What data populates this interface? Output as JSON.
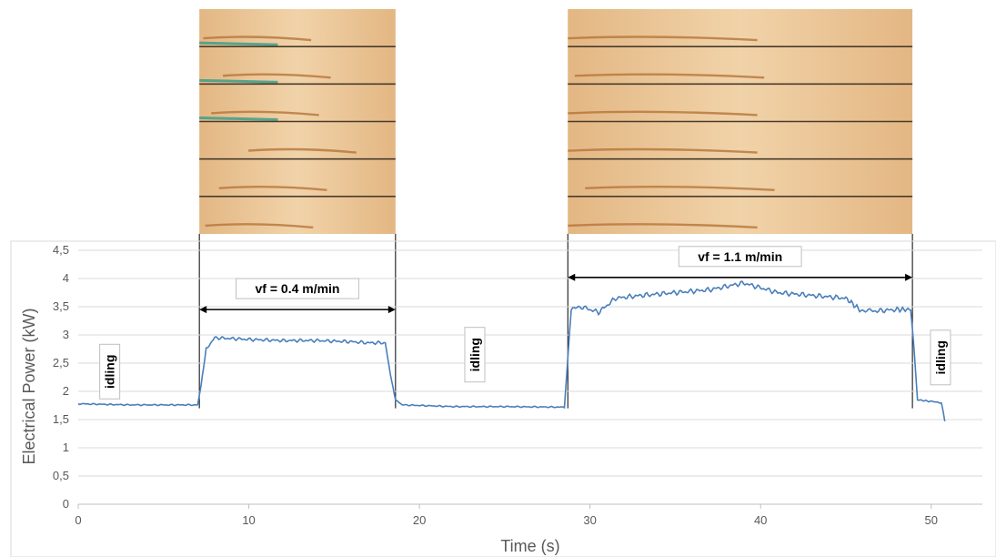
{
  "colors": {
    "series": "#4a7ebb",
    "grid": "#d9d9d9",
    "text": "#595959",
    "wood_light": "#f1d3a9",
    "wood_dark": "#e3b783",
    "wood_stain": "#b5743a",
    "wood_green": "#3d9d8b"
  },
  "chart_data": {
    "type": "line",
    "xlabel": "Time (s)",
    "ylabel": "Electrical Power (kW)",
    "xlim": [
      0,
      53
    ],
    "ylim": [
      0,
      4.5
    ],
    "x_ticks": [
      "0",
      "10",
      "20",
      "30",
      "40",
      "50"
    ],
    "y_ticks": [
      "0",
      "0,5",
      "1",
      "1,5",
      "2",
      "2,5",
      "3",
      "3,5",
      "4",
      "4,5"
    ],
    "grid": "horizontal",
    "series": [
      {
        "x": [
          0,
          3,
          6,
          7.0,
          7.2,
          7.5,
          8,
          10,
          12,
          14,
          16,
          17,
          18.0,
          18.3,
          18.6,
          19,
          22,
          25,
          28.5,
          28.7,
          28.9,
          29.5,
          30.5,
          31.5,
          33,
          35,
          37,
          39,
          41,
          43,
          45,
          45.8,
          46.5,
          48,
          48.8,
          49.0,
          49.2,
          50,
          50.6,
          50.7,
          50.8
        ],
        "y": [
          1.78,
          1.76,
          1.76,
          1.76,
          2.1,
          2.75,
          2.95,
          2.92,
          2.9,
          2.9,
          2.88,
          2.86,
          2.86,
          2.3,
          1.85,
          1.76,
          1.73,
          1.73,
          1.72,
          2.6,
          3.45,
          3.5,
          3.4,
          3.65,
          3.7,
          3.75,
          3.8,
          3.92,
          3.75,
          3.7,
          3.65,
          3.45,
          3.42,
          3.45,
          3.45,
          2.7,
          1.85,
          1.82,
          1.8,
          1.65,
          1.47
        ]
      }
    ],
    "annotations": [
      {
        "text": "vf = 0.4 m/min",
        "x_start": 7.1,
        "x_end": 18.6,
        "y": 3.45
      },
      {
        "text": "vf = 1.1 m/min",
        "x_start": 28.7,
        "x_end": 48.9,
        "y": 4.02
      },
      {
        "text": "idling",
        "x": 1.9,
        "y": 2.35
      },
      {
        "text": "idling",
        "x": 23.3,
        "y": 2.65
      },
      {
        "text": "idling",
        "x": 50.6,
        "y": 2.6
      }
    ]
  },
  "photos": [
    {
      "name": "wood-sample-photo-0-4",
      "boards": 6,
      "x_start": 7.1,
      "x_end": 18.6,
      "stripe_x": [
        0.02,
        0.12,
        0.06,
        0.25,
        0.1,
        0.03
      ]
    },
    {
      "name": "wood-sample-photo-1-1",
      "boards": 6,
      "x_start": 28.7,
      "x_end": 48.9,
      "stripe_x": [
        0.0,
        0.02,
        0.0,
        0.0,
        0.05,
        0.0
      ]
    }
  ]
}
